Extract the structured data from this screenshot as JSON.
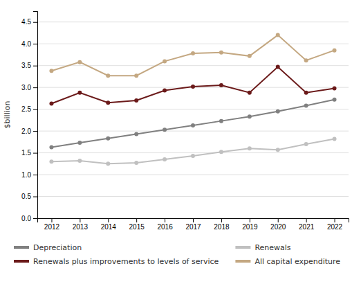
{
  "chart_data": {
    "type": "line",
    "ylabel": "$billion",
    "x": [
      2012,
      2013,
      2014,
      2015,
      2016,
      2017,
      2018,
      2019,
      2020,
      2021,
      2022
    ],
    "xlim": [
      2011.5,
      2022.5
    ],
    "xticks": [
      2012,
      2013,
      2014,
      2015,
      2016,
      2017,
      2018,
      2019,
      2020,
      2021,
      2022
    ],
    "ylim": [
      0.0,
      4.75
    ],
    "yticks": [
      {
        "value": 0.0,
        "label": "0.0"
      },
      0.5,
      {
        "value": 1.0,
        "label": "1.0"
      },
      1.5,
      {
        "value": 2.0,
        "label": "2.0"
      },
      2.5,
      {
        "value": 3.0,
        "label": "3.0"
      },
      3.5,
      {
        "value": 4.0,
        "label": "4.0"
      },
      4.5
    ],
    "grid": true,
    "legend": "bottom",
    "marker": "circle",
    "series": [
      {
        "name": "Depreciation",
        "color": "#808080",
        "values": [
          1.63,
          1.73,
          1.83,
          1.93,
          2.03,
          2.13,
          2.23,
          2.33,
          2.45,
          2.58,
          2.72
        ]
      },
      {
        "name": "Renewals plus improvements to levels of service",
        "color": "#6b1a1a",
        "values": [
          2.63,
          2.88,
          2.65,
          2.7,
          2.93,
          3.02,
          3.05,
          2.88,
          3.47,
          2.88,
          2.98
        ]
      },
      {
        "name": "Renewals",
        "color": "#c0c0c0",
        "values": [
          1.3,
          1.32,
          1.25,
          1.27,
          1.35,
          1.43,
          1.52,
          1.6,
          1.57,
          1.7,
          1.82
        ]
      },
      {
        "name": "All capital expenditure",
        "color": "#c4a882",
        "values": [
          3.38,
          3.58,
          3.27,
          3.27,
          3.6,
          3.78,
          3.8,
          3.72,
          4.2,
          3.62,
          3.85
        ]
      }
    ]
  }
}
